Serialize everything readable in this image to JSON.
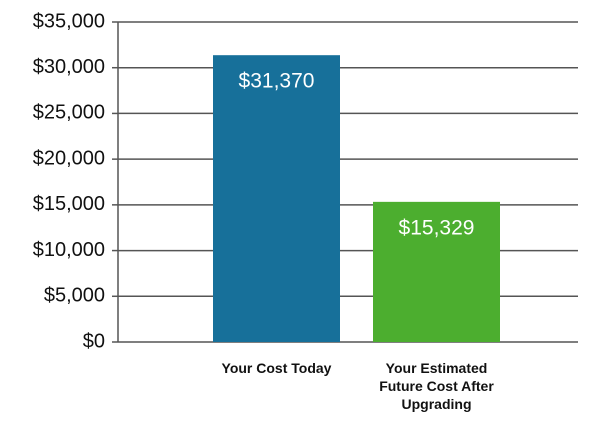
{
  "chart_data": {
    "type": "bar",
    "categories": [
      "Your Cost Today",
      "Your Estimated Future Cost After Upgrading"
    ],
    "values": [
      31370,
      15329
    ],
    "value_labels": [
      "$31,370",
      "$15,329"
    ],
    "colors": [
      "#17709a",
      "#4cae2f"
    ],
    "ylim": [
      0,
      35000
    ],
    "yticks": [
      {
        "value": 0,
        "label": "$0"
      },
      {
        "value": 5000,
        "label": "$5,000"
      },
      {
        "value": 10000,
        "label": "$10,000"
      },
      {
        "value": 15000,
        "label": "$15,000"
      },
      {
        "value": 20000,
        "label": "$20,000"
      },
      {
        "value": 25000,
        "label": "$25,000"
      },
      {
        "value": 30000,
        "label": "$30,000"
      },
      {
        "value": 35000,
        "label": "$35,000"
      }
    ],
    "grid": true
  }
}
